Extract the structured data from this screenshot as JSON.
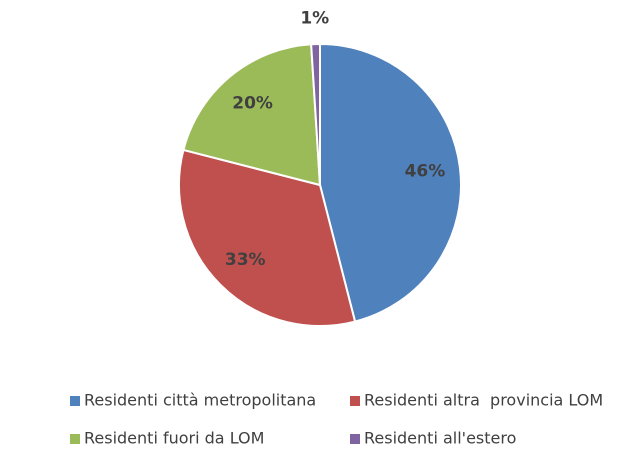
{
  "chart_data": {
    "type": "pie",
    "categories": [
      "Residenti città metropolitana",
      "Residenti altra  provincia LOM",
      "Residenti fuori da LOM",
      "Residenti all'estero"
    ],
    "values": [
      46,
      33,
      20,
      1
    ],
    "value_labels": [
      "46%",
      "33%",
      "20%",
      "1%"
    ],
    "colors": [
      "#4f81bd",
      "#c0504d",
      "#9bbb59",
      "#8064a2"
    ],
    "legend": "bottom"
  }
}
